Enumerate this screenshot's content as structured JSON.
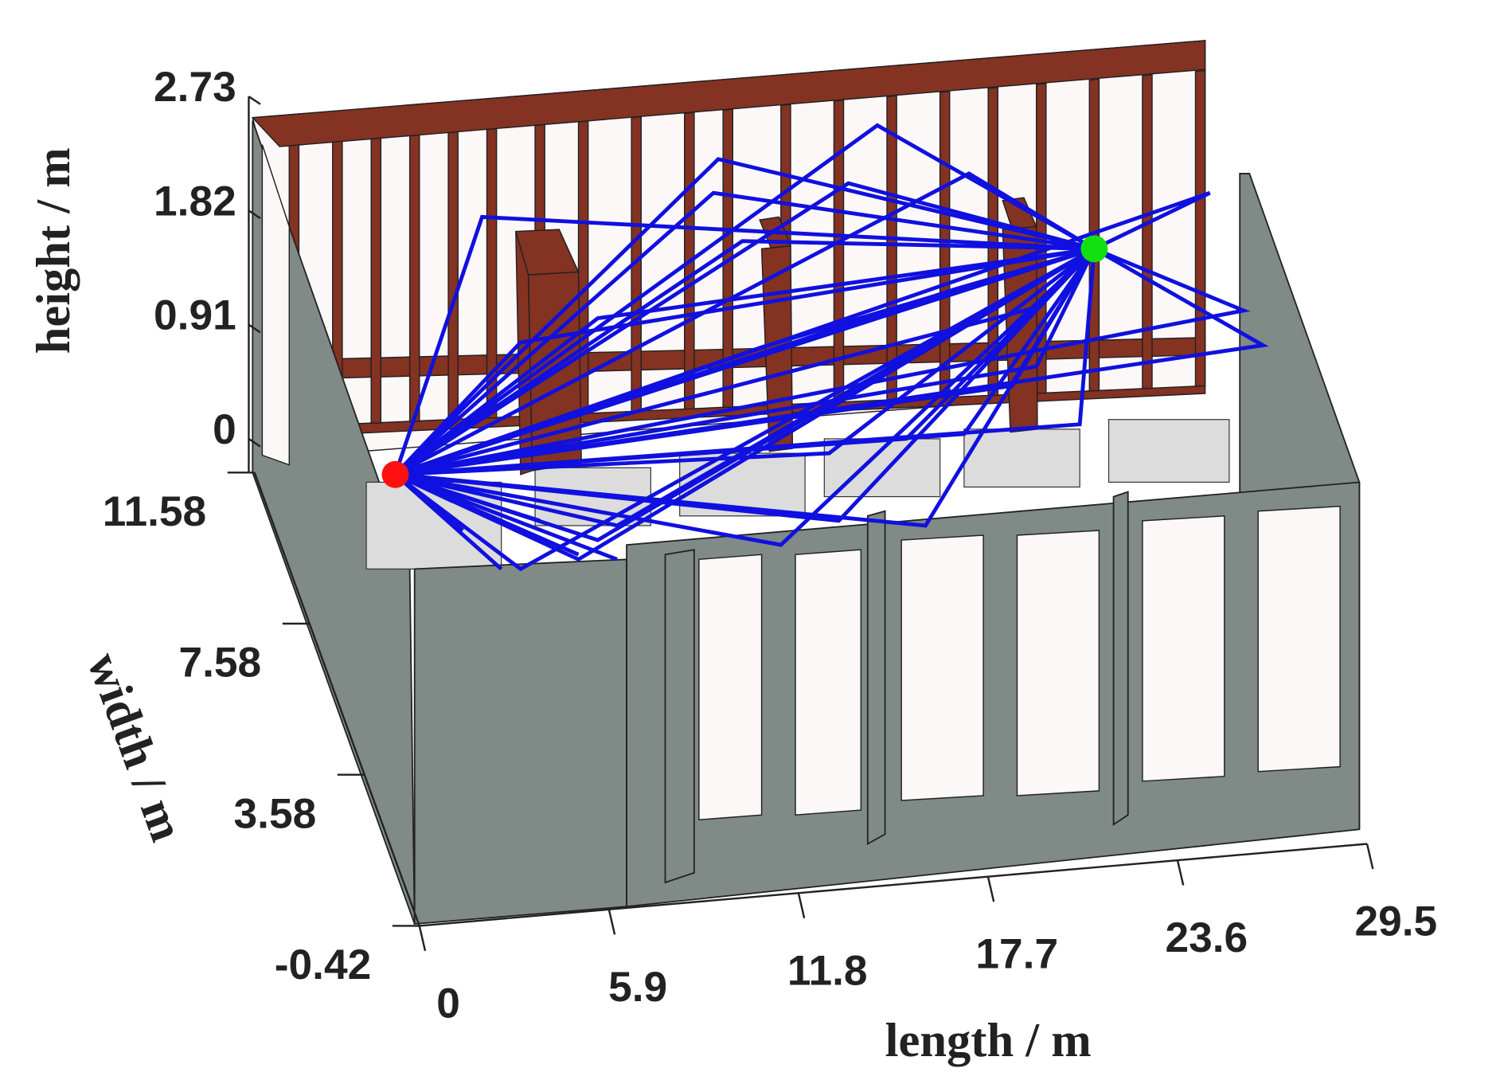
{
  "chart_data": {
    "type": "room3d",
    "xlabel": "length / m",
    "ylabel": "width / m",
    "zlabel": "height / m",
    "xlim": [
      0,
      29.5
    ],
    "xticks": [
      0,
      5.9,
      11.8,
      17.7,
      23.6,
      29.5
    ],
    "ylim": [
      -0.42,
      11.58
    ],
    "yticks": [
      -0.42,
      3.58,
      7.58,
      11.58
    ],
    "zlim": [
      0,
      2.73
    ],
    "zticks": [
      0,
      0.91,
      1.82,
      2.73
    ],
    "ray_color": "#1010e0",
    "tx_color": "#ff1010",
    "rx_color": "#10e010"
  }
}
